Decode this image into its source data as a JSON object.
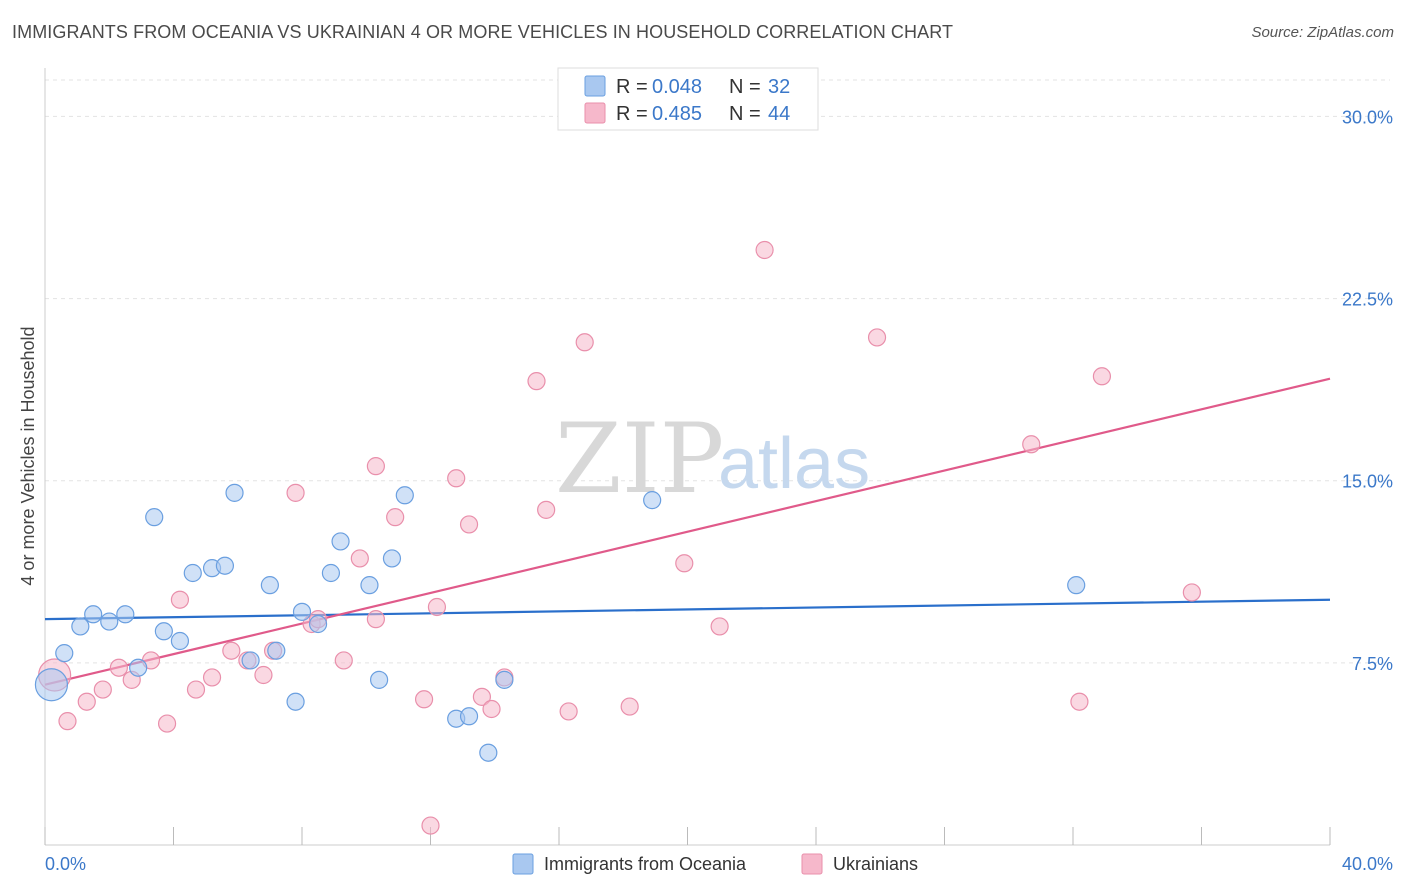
{
  "title": "IMMIGRANTS FROM OCEANIA VS UKRAINIAN 4 OR MORE VEHICLES IN HOUSEHOLD CORRELATION CHART",
  "source": "Source: ZipAtlas.com",
  "watermark": {
    "zip": "ZIP",
    "atlas": "atlas"
  },
  "legend": {
    "rows": [
      {
        "r_label": "R = ",
        "r_value": "0.048",
        "n_label": "N = ",
        "n_value": "32",
        "color": "#a9c8f0"
      },
      {
        "r_label": "R = ",
        "r_value": "0.485",
        "n_label": "N = ",
        "n_value": "44",
        "color": "#f6b8cb"
      }
    ]
  },
  "chart_data": {
    "type": "scatter",
    "title": "IMMIGRANTS FROM OCEANIA VS UKRAINIAN 4 OR MORE VEHICLES IN HOUSEHOLD CORRELATION CHART",
    "xlabel": "",
    "ylabel": "4 or more Vehicles in Household",
    "xlim": [
      0,
      40
    ],
    "ylim": [
      0,
      31.5
    ],
    "x_tick_labels": [
      "0.0%",
      "40.0%"
    ],
    "y_ticks": [
      7.5,
      15.0,
      22.5,
      30.0
    ],
    "y_tick_labels": [
      "7.5%",
      "15.0%",
      "22.5%",
      "30.0%"
    ],
    "grid": true,
    "legend_position": "top-center",
    "series": [
      {
        "name": "Immigrants from Oceania",
        "color": "#a9c8f0",
        "stroke": "#6a9fe0",
        "trend_color": "#2a6fcb",
        "trend": {
          "x0": 0,
          "y0": 9.3,
          "x1": 40,
          "y1": 10.1
        },
        "points": [
          [
            0.2,
            6.6,
            "large"
          ],
          [
            0.6,
            7.9
          ],
          [
            1.1,
            9.0
          ],
          [
            1.5,
            9.5
          ],
          [
            2.0,
            9.2
          ],
          [
            2.5,
            9.5
          ],
          [
            2.9,
            7.3
          ],
          [
            3.4,
            13.5
          ],
          [
            3.7,
            8.8
          ],
          [
            4.2,
            8.4
          ],
          [
            4.6,
            11.2
          ],
          [
            5.2,
            11.4
          ],
          [
            5.6,
            11.5
          ],
          [
            5.9,
            14.5
          ],
          [
            6.4,
            7.6
          ],
          [
            7.0,
            10.7
          ],
          [
            7.2,
            8.0
          ],
          [
            7.8,
            5.9
          ],
          [
            8.0,
            9.6
          ],
          [
            8.5,
            9.1
          ],
          [
            8.9,
            11.2
          ],
          [
            9.2,
            12.5
          ],
          [
            10.1,
            10.7
          ],
          [
            10.4,
            6.8
          ],
          [
            10.8,
            11.8
          ],
          [
            11.2,
            14.4
          ],
          [
            12.8,
            5.2
          ],
          [
            13.2,
            5.3
          ],
          [
            13.8,
            3.8
          ],
          [
            14.3,
            6.8
          ],
          [
            18.9,
            14.2
          ],
          [
            32.1,
            10.7
          ]
        ]
      },
      {
        "name": "Ukrainians",
        "color": "#f6b8cb",
        "stroke": "#e98fab",
        "trend_color": "#e05a8a",
        "trend": {
          "x0": 0,
          "y0": 6.6,
          "x1": 40,
          "y1": 19.2
        },
        "points": [
          [
            0.3,
            7.0,
            "large"
          ],
          [
            0.7,
            5.1
          ],
          [
            1.3,
            5.9
          ],
          [
            1.8,
            6.4
          ],
          [
            2.3,
            7.3
          ],
          [
            2.7,
            6.8
          ],
          [
            3.3,
            7.6
          ],
          [
            3.8,
            5.0
          ],
          [
            4.2,
            10.1
          ],
          [
            4.7,
            6.4
          ],
          [
            5.2,
            6.9
          ],
          [
            5.8,
            8.0
          ],
          [
            6.3,
            7.6
          ],
          [
            6.8,
            7.0
          ],
          [
            7.1,
            8.0
          ],
          [
            7.8,
            14.5
          ],
          [
            8.3,
            9.1
          ],
          [
            8.5,
            9.3
          ],
          [
            9.3,
            7.6
          ],
          [
            9.8,
            11.8
          ],
          [
            10.3,
            15.6
          ],
          [
            10.9,
            13.5
          ],
          [
            11.8,
            6.0
          ],
          [
            12.0,
            0.8
          ],
          [
            12.2,
            9.8
          ],
          [
            12.8,
            15.1
          ],
          [
            13.2,
            13.2
          ],
          [
            13.6,
            6.1
          ],
          [
            13.9,
            5.6
          ],
          [
            14.3,
            6.9
          ],
          [
            15.6,
            13.8
          ],
          [
            15.3,
            19.1
          ],
          [
            16.3,
            5.5
          ],
          [
            16.8,
            20.7
          ],
          [
            18.2,
            5.7
          ],
          [
            19.9,
            11.6
          ],
          [
            21.0,
            9.0
          ],
          [
            22.4,
            24.5
          ],
          [
            25.9,
            20.9
          ],
          [
            30.7,
            16.5
          ],
          [
            32.2,
            5.9
          ],
          [
            32.9,
            19.3
          ],
          [
            35.7,
            10.4
          ],
          [
            10.3,
            9.3
          ]
        ]
      }
    ]
  }
}
